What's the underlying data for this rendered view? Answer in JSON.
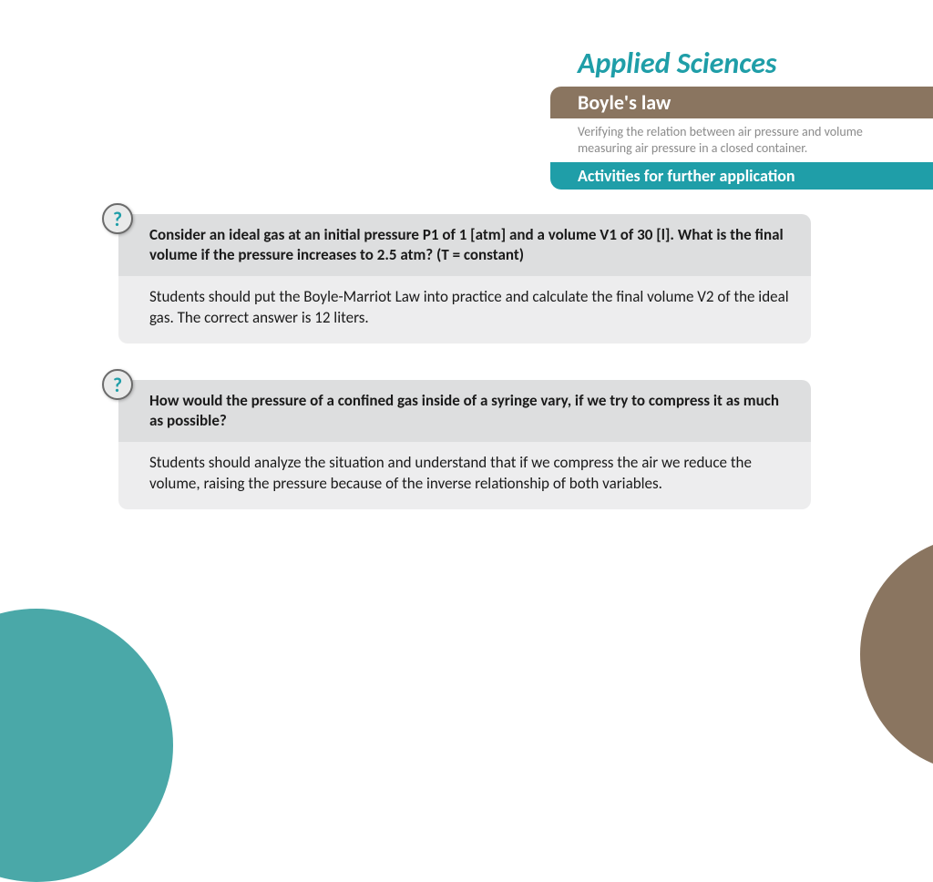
{
  "colors": {
    "teal": "#1f9ea8",
    "brown": "#8a7560",
    "gray_text": "#8a8a8a",
    "panel_question_bg": "#dddedf",
    "panel_answer_bg": "#ededee",
    "icon_bg": "#e9eaea",
    "icon_border": "#6b6b6b",
    "icon_fg": "#1f9ea8",
    "deco_bl": "#4aa8a8",
    "deco_br": "#8a7560"
  },
  "header": {
    "brand": "Applied Sciences",
    "topic": "Boyle's law",
    "subtitle": "Verifying the relation between air pressure and volume measuring air pressure in a closed container.",
    "section": "Activities for further application"
  },
  "qa": [
    {
      "icon": "?",
      "question": "Consider an ideal gas at an initial pressure P1 of 1 [atm] and a volume V1 of 30 [l]. What is the final volume if the pressure increases to 2.5 atm? (T = constant)",
      "answer": "Students should put the Boyle-Marriot Law into practice and calculate the final volume V2 of the ideal gas. The correct answer is 12 liters."
    },
    {
      "icon": "?",
      "question": "How would the pressure of a confined gas inside of a syringe vary, if we try to compress it as much as possible?",
      "answer": "Students should analyze the situation and understand that if we compress the air we reduce the volume, raising the pressure because of the inverse relationship of both variables."
    }
  ]
}
